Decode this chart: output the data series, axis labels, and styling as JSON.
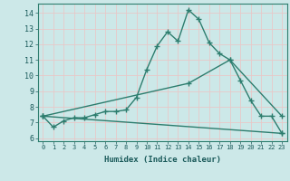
{
  "background_color": "#cce8e8",
  "grid_color": "#e8c8c8",
  "line_color": "#2d7d6e",
  "line_width": 1.0,
  "marker": "+",
  "marker_size": 4,
  "xlabel": "Humidex (Indice chaleur)",
  "xlim": [
    -0.5,
    23.5
  ],
  "ylim": [
    5.8,
    14.6
  ],
  "yticks": [
    6,
    7,
    8,
    9,
    10,
    11,
    12,
    13,
    14
  ],
  "xticks": [
    0,
    1,
    2,
    3,
    4,
    5,
    6,
    7,
    8,
    9,
    10,
    11,
    12,
    13,
    14,
    15,
    16,
    17,
    18,
    19,
    20,
    21,
    22,
    23
  ],
  "xtick_labels": [
    "0",
    "1",
    "2",
    "3",
    "4",
    "5",
    "6",
    "7",
    "8",
    "9",
    "10",
    "11",
    "12",
    "13",
    "14",
    "15",
    "16",
    "17",
    "18",
    "19",
    "20",
    "21",
    "22",
    "23"
  ],
  "series": [
    {
      "x": [
        0,
        1,
        2,
        3,
        4,
        5,
        6,
        7,
        8,
        9,
        10,
        11,
        12,
        13,
        14,
        15,
        16,
        17,
        18,
        19,
        20,
        21,
        22,
        23
      ],
      "y": [
        7.4,
        6.7,
        7.1,
        7.3,
        7.3,
        7.5,
        7.7,
        7.7,
        7.8,
        8.6,
        10.4,
        11.9,
        12.8,
        12.2,
        14.2,
        13.6,
        12.1,
        11.4,
        11.0,
        9.7,
        8.4,
        7.4,
        7.4,
        6.3
      ]
    },
    {
      "x": [
        0,
        14,
        18,
        23
      ],
      "y": [
        7.4,
        9.5,
        11.0,
        7.4
      ]
    },
    {
      "x": [
        0,
        23
      ],
      "y": [
        7.4,
        6.3
      ]
    }
  ]
}
